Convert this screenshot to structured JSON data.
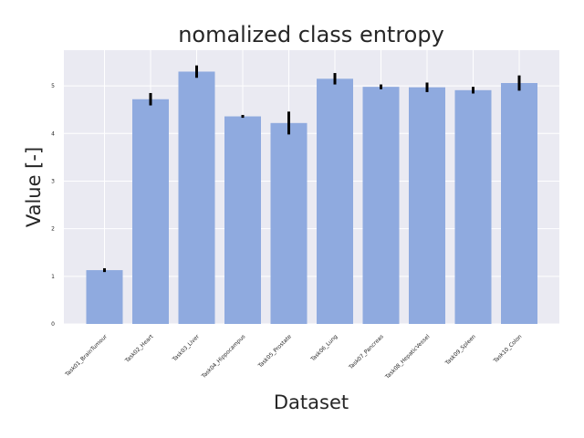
{
  "chart_data": {
    "type": "bar",
    "title": "nomalized class entropy",
    "xlabel": "Dataset",
    "ylabel": "Value [-]",
    "categories": [
      "Task01_BrainTumour",
      "Task02_Heart",
      "Task03_Liver",
      "Task04_Hippocampus",
      "Task05_Prostate",
      "Task06_Lung",
      "Task07_Pancreas",
      "Task08_HepaticVessel",
      "Task09_Spleen",
      "Task10_Colon"
    ],
    "values": [
      1.13,
      4.72,
      5.3,
      4.36,
      4.22,
      5.15,
      4.98,
      4.97,
      4.91,
      5.06
    ],
    "error": [
      0.04,
      0.13,
      0.13,
      0.03,
      0.24,
      0.12,
      0.05,
      0.1,
      0.07,
      0.16
    ],
    "ylim": [
      0,
      5.75
    ],
    "yticks": [
      "0",
      "1",
      "2",
      "3",
      "4",
      "5"
    ],
    "grid": true,
    "colors": {
      "bar": "#8faadf",
      "error_bar": "#000000",
      "plot_background": "#eaeaf2",
      "grid": "#ffffff",
      "text": "#262626"
    }
  }
}
